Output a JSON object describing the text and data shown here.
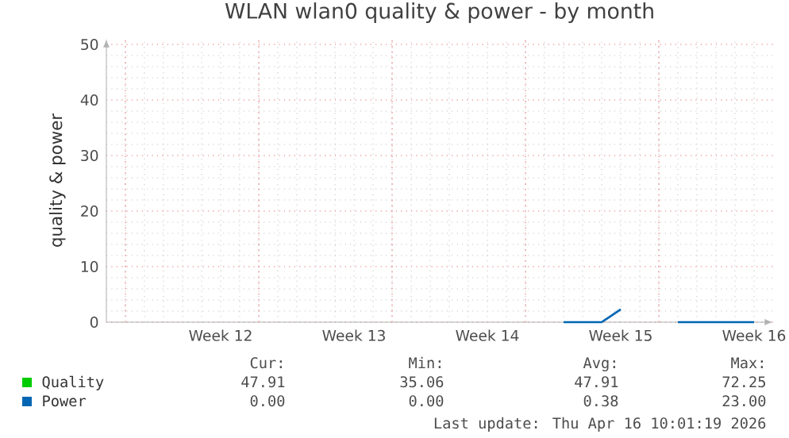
{
  "chart_data": {
    "type": "line",
    "title": "WLAN wlan0 quality & power - by month",
    "ylabel": "quality & power",
    "xlim": [
      "2026-03-15",
      "2026-04-19"
    ],
    "xticks": [
      {
        "value": "2026-03-21",
        "label": "Week 12"
      },
      {
        "value": "2026-03-28",
        "label": "Week 13"
      },
      {
        "value": "2026-04-04",
        "label": "Week 14"
      },
      {
        "value": "2026-04-11",
        "label": "Week 15"
      },
      {
        "value": "2026-04-18",
        "label": "Week 16"
      }
    ],
    "ylim": [
      0,
      51
    ],
    "yticks": [
      0,
      10,
      20,
      30,
      40,
      50
    ],
    "grid": true,
    "legend": "bottom",
    "ref_lines": [
      {
        "axis": "x",
        "value": "2026-03-16",
        "color": "#f0a0a0"
      },
      {
        "axis": "x",
        "value": "2026-03-23",
        "color": "#f0a0a0"
      },
      {
        "axis": "x",
        "value": "2026-03-30",
        "color": "#f0a0a0"
      },
      {
        "axis": "x",
        "value": "2026-04-06",
        "color": "#f0a0a0"
      },
      {
        "axis": "x",
        "value": "2026-04-13",
        "color": "#f0a0a0"
      }
    ],
    "series": [
      {
        "name": "Quality",
        "color": "#00cc00",
        "values": [
          null
        ]
      },
      {
        "name": "Power",
        "color": "#0066b3",
        "x": [
          "2026-04-08",
          "2026-04-10",
          "2026-04-11",
          "2026-04-12",
          "2026-04-14",
          "2026-04-18"
        ],
        "values": [
          0,
          0,
          2.3,
          null,
          0,
          0
        ]
      }
    ],
    "annotations": [
      "Cur:",
      "Min:",
      "Avg:",
      "Max:",
      "47.91",
      "35.06",
      "47.91",
      "72.25",
      "0.00",
      "0.00",
      "0.38",
      "23.00",
      "Last update: Thu Apr 16 10:01:19 2026"
    ]
  }
}
